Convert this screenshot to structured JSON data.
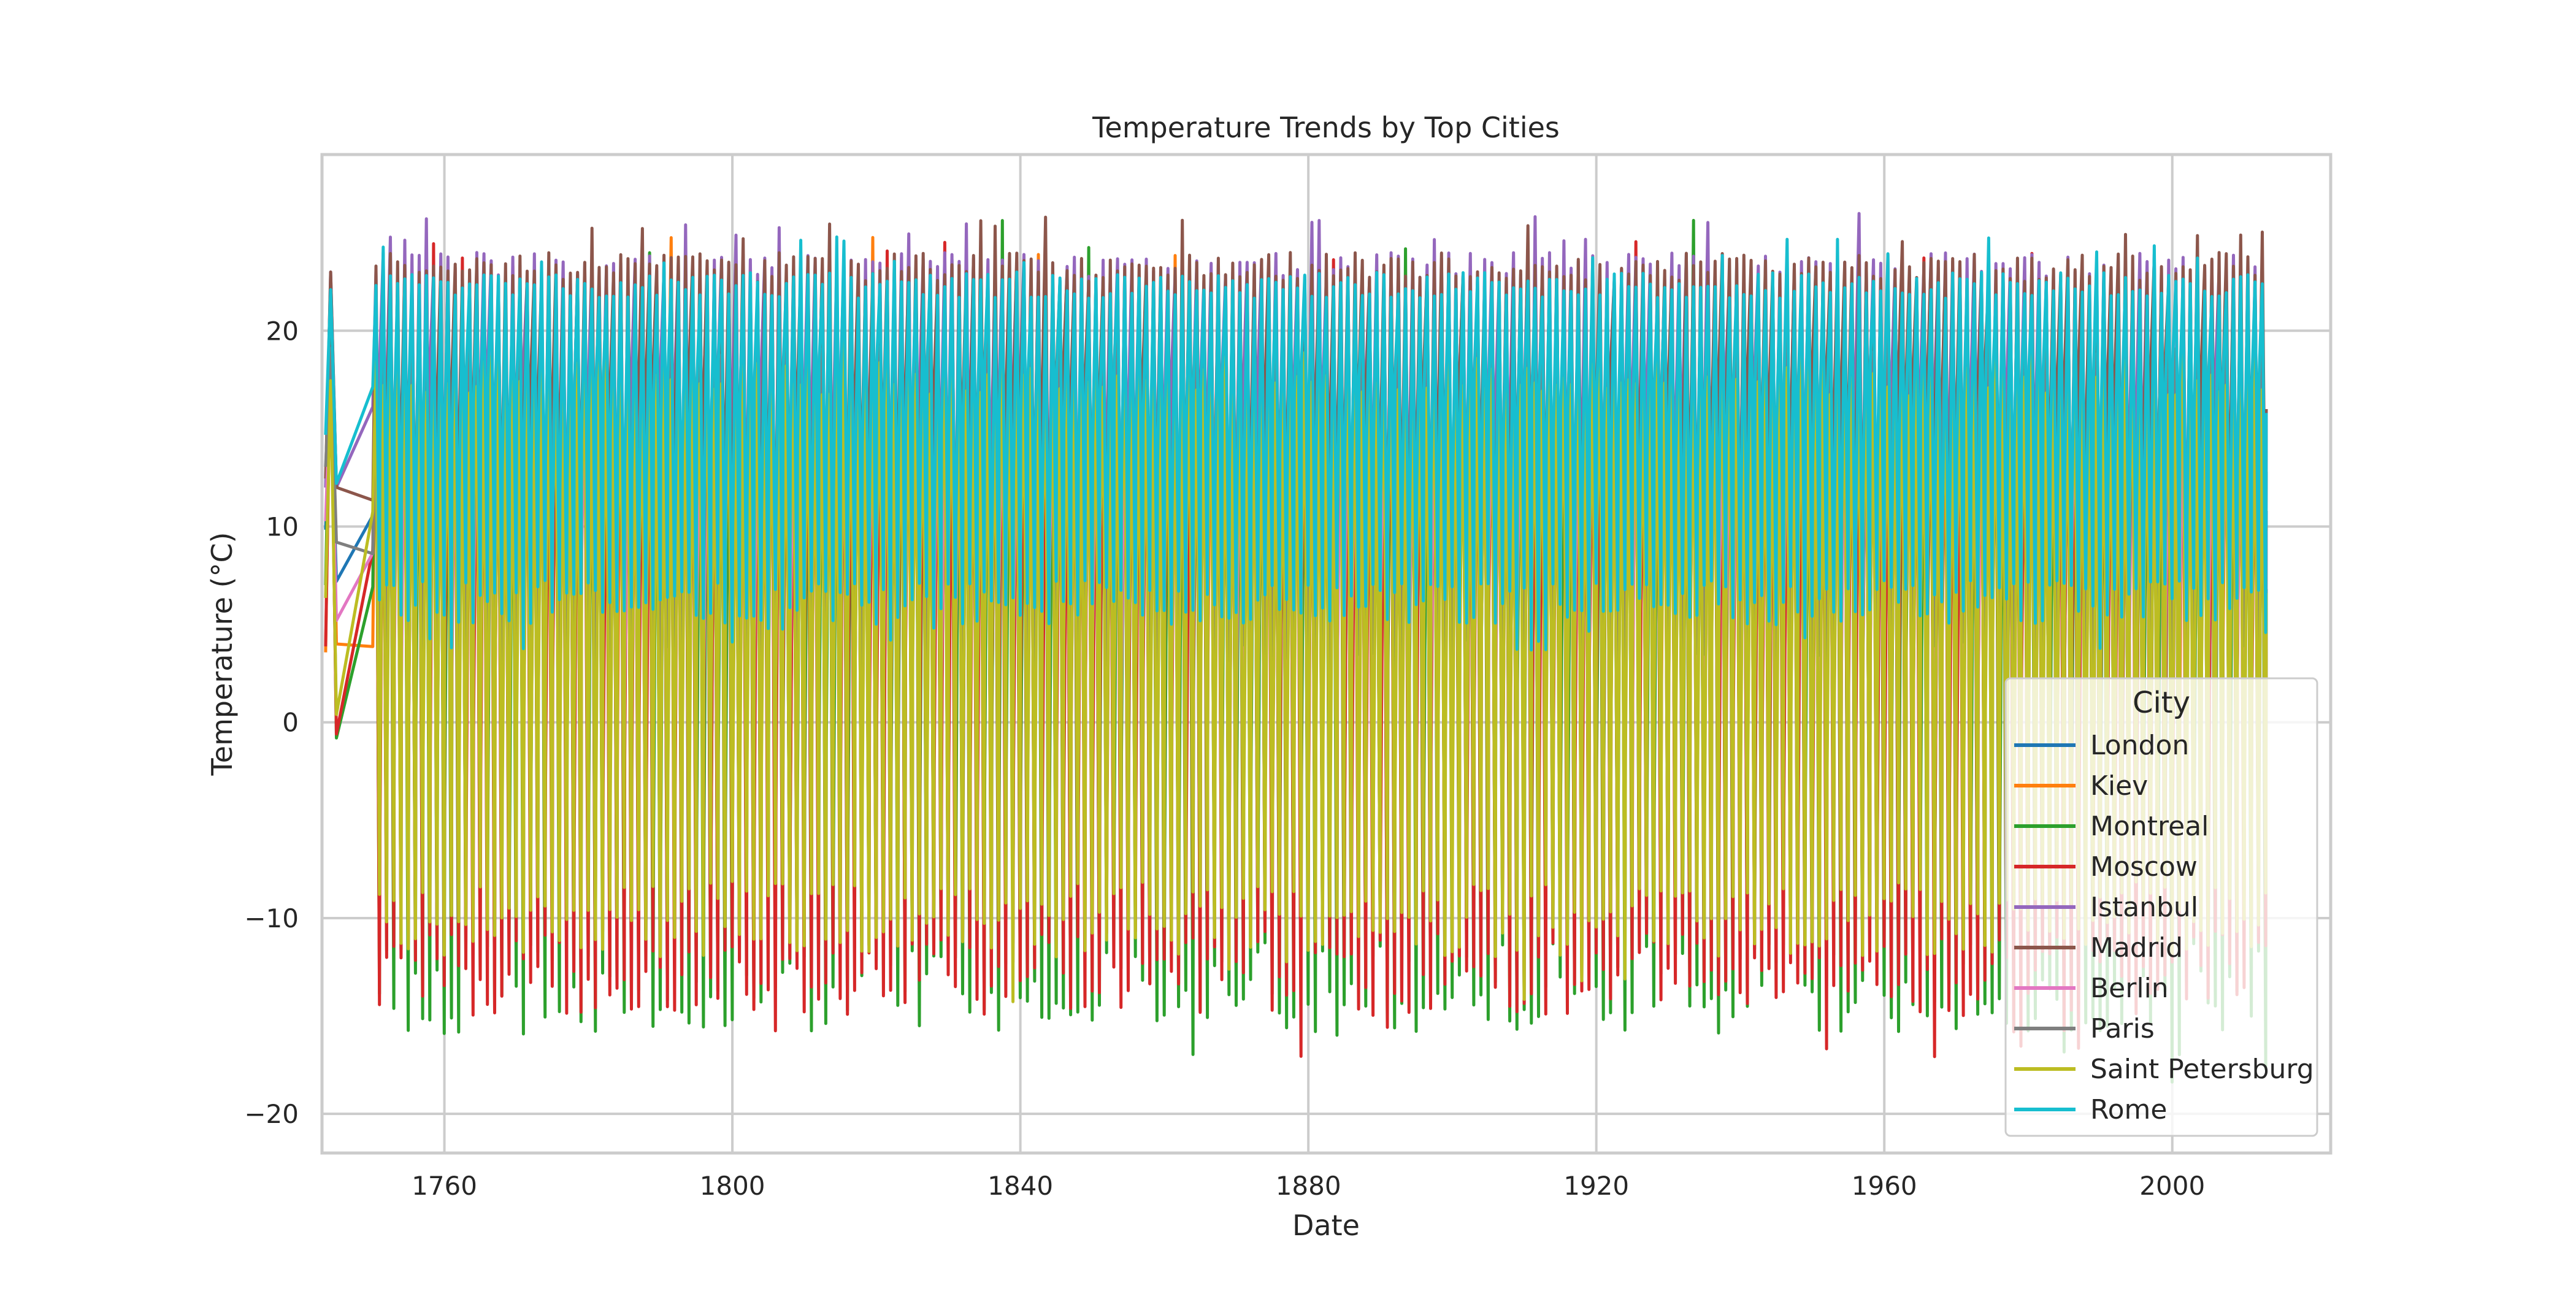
{
  "chart_data": {
    "type": "line",
    "title": "Temperature Trends by Top Cities",
    "xlabel": "Date",
    "ylabel": "Temperature (°C)",
    "xlim": [
      1743,
      2022
    ],
    "ylim": [
      -22,
      29
    ],
    "x_ticks": [
      1760,
      1800,
      1840,
      1880,
      1920,
      1960,
      2000
    ],
    "x_tick_labels": [
      "1760",
      "1800",
      "1840",
      "1880",
      "1920",
      "1960",
      "2000"
    ],
    "y_ticks": [
      -20,
      -10,
      0,
      10,
      20
    ],
    "y_tick_labels": [
      "−20",
      "−10",
      "0",
      "10",
      "20"
    ],
    "grid": true,
    "legend": {
      "title": "City",
      "position": "center-right"
    },
    "x_start": 1743,
    "x_end": 2013,
    "series": [
      {
        "name": "London",
        "color": "#1f77b4",
        "approx_min": 0,
        "approx_max": 18
      },
      {
        "name": "Kiev",
        "color": "#ff7f0e",
        "approx_min": -8,
        "approx_max": 22
      },
      {
        "name": "Montreal",
        "color": "#2ca02c",
        "approx_min": -16,
        "approx_max": 22
      },
      {
        "name": "Moscow",
        "color": "#d62728",
        "approx_min": -15,
        "approx_max": 21
      },
      {
        "name": "Istanbul",
        "color": "#9467bd",
        "approx_min": 4,
        "approx_max": 24
      },
      {
        "name": "Madrid",
        "color": "#8c564b",
        "approx_min": 4,
        "approx_max": 24
      },
      {
        "name": "Berlin",
        "color": "#e377c2",
        "approx_min": -4,
        "approx_max": 19
      },
      {
        "name": "Paris",
        "color": "#7f7f7f",
        "approx_min": 2,
        "approx_max": 20
      },
      {
        "name": "Saint Petersburg",
        "color": "#bcbd22",
        "approx_min": -12,
        "approx_max": 19
      },
      {
        "name": "Rome",
        "color": "#17becf",
        "approx_min": 5,
        "approx_max": 23
      }
    ]
  }
}
